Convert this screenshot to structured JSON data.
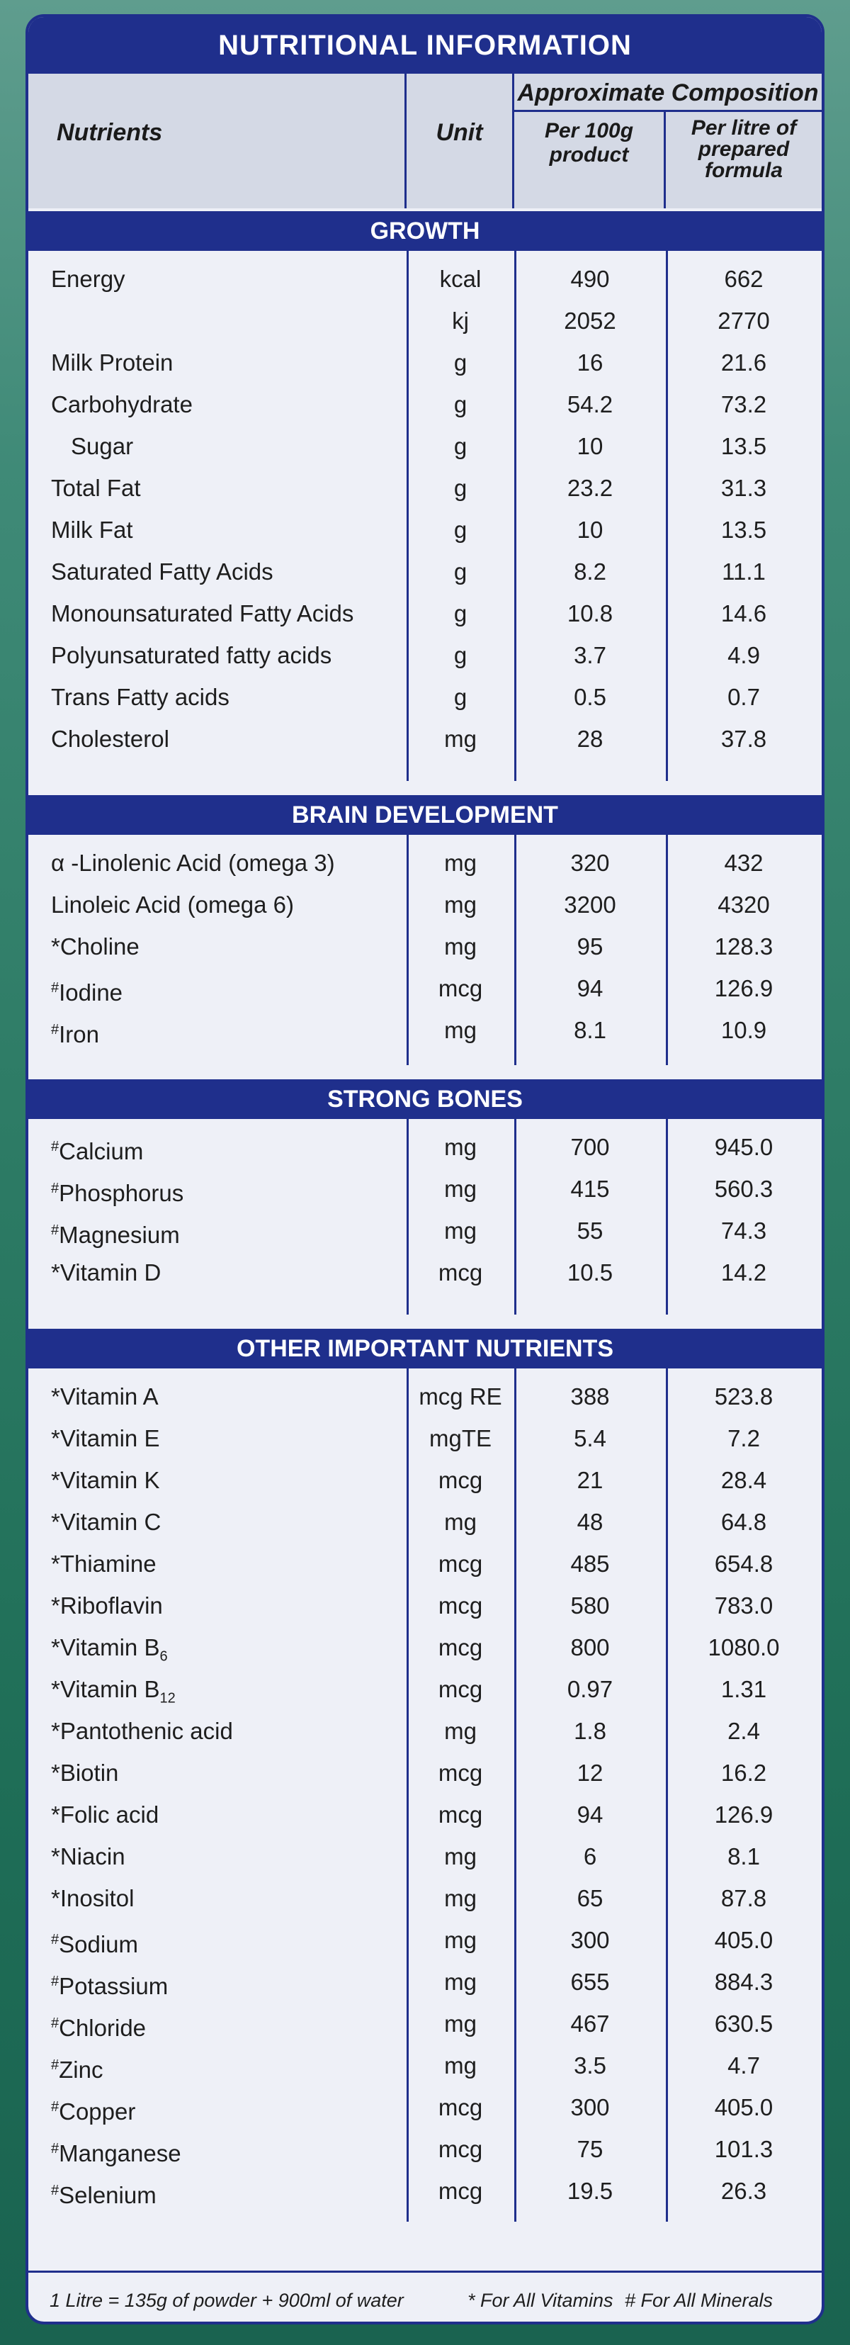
{
  "title": "NUTRITIONAL INFORMATION",
  "header": {
    "nutrients": "Nutrients",
    "unit": "Unit",
    "approx": "Approximate Composition",
    "per100": [
      "Per 100g",
      "product"
    ],
    "perlitre": [
      "Per litre of",
      "prepared",
      "formula"
    ]
  },
  "sections": [
    {
      "title": "GROWTH",
      "rows": [
        {
          "name": "Energy",
          "unit": "kcal",
          "v1": "490",
          "v2": "662"
        },
        {
          "name": "",
          "unit": "kj",
          "v1": "2052",
          "v2": "2770"
        },
        {
          "name": "Milk Protein",
          "unit": "g",
          "v1": "16",
          "v2": "21.6"
        },
        {
          "name": "Carbohydrate",
          "unit": "g",
          "v1": "54.2",
          "v2": "73.2"
        },
        {
          "name": "Sugar",
          "indent": true,
          "unit": "g",
          "v1": "10",
          "v2": "13.5"
        },
        {
          "name": "Total Fat",
          "unit": "g",
          "v1": "23.2",
          "v2": "31.3"
        },
        {
          "name": "Milk Fat",
          "unit": "g",
          "v1": "10",
          "v2": "13.5"
        },
        {
          "name": "Saturated Fatty Acids",
          "unit": "g",
          "v1": "8.2",
          "v2": "11.1"
        },
        {
          "name": "Monounsaturated Fatty Acids",
          "unit": "g",
          "v1": "10.8",
          "v2": "14.6"
        },
        {
          "name": "Polyunsaturated fatty acids",
          "unit": "g",
          "v1": "3.7",
          "v2": "4.9"
        },
        {
          "name": "Trans Fatty acids",
          "unit": "g",
          "v1": "0.5",
          "v2": "0.7"
        },
        {
          "name": "Cholesterol",
          "unit": "mg",
          "v1": "28",
          "v2": "37.8"
        }
      ]
    },
    {
      "title": "BRAIN DEVELOPMENT",
      "rows": [
        {
          "name": "α -Linolenic Acid (omega 3)",
          "unit": "mg",
          "v1": "320",
          "v2": "432"
        },
        {
          "name": "Linoleic Acid (omega 6)",
          "unit": "mg",
          "v1": "3200",
          "v2": "4320"
        },
        {
          "mark": "*",
          "name": "Choline",
          "unit": "mg",
          "v1": "95",
          "v2": "128.3"
        },
        {
          "mark": "#",
          "name": "Iodine",
          "unit": "mcg",
          "v1": "94",
          "v2": "126.9"
        },
        {
          "mark": "#",
          "name": "Iron",
          "unit": "mg",
          "v1": "8.1",
          "v2": "10.9"
        }
      ]
    },
    {
      "title": "STRONG BONES",
      "rows": [
        {
          "mark": "#",
          "name": "Calcium",
          "unit": "mg",
          "v1": "700",
          "v2": "945.0"
        },
        {
          "mark": "#",
          "name": "Phosphorus",
          "unit": "mg",
          "v1": "415",
          "v2": "560.3"
        },
        {
          "mark": "#",
          "name": "Magnesium",
          "unit": "mg",
          "v1": "55",
          "v2": "74.3"
        },
        {
          "mark": "*",
          "name": "Vitamin D",
          "unit": "mcg",
          "v1": "10.5",
          "v2": "14.2"
        }
      ]
    },
    {
      "title": "OTHER IMPORTANT NUTRIENTS",
      "rows": [
        {
          "mark": "*",
          "name": "Vitamin A",
          "unit": "mcg RE",
          "v1": "388",
          "v2": "523.8"
        },
        {
          "mark": "*",
          "name": "Vitamin E",
          "unit": "mgTE",
          "v1": "5.4",
          "v2": "7.2"
        },
        {
          "mark": "*",
          "name": "Vitamin K",
          "unit": "mcg",
          "v1": "21",
          "v2": "28.4"
        },
        {
          "mark": "*",
          "name": "Vitamin C",
          "unit": "mg",
          "v1": "48",
          "v2": "64.8"
        },
        {
          "mark": "*",
          "name": "Thiamine",
          "unit": "mcg",
          "v1": "485",
          "v2": "654.8"
        },
        {
          "mark": "*",
          "name": "Riboflavin",
          "unit": "mcg",
          "v1": "580",
          "v2": "783.0"
        },
        {
          "mark": "*",
          "name": "Vitamin B",
          "sub": "6",
          "unit": "mcg",
          "v1": "800",
          "v2": "1080.0"
        },
        {
          "mark": "*",
          "name": "Vitamin B",
          "sub": "12",
          "unit": "mcg",
          "v1": "0.97",
          "v2": "1.31"
        },
        {
          "mark": "*",
          "name": "Pantothenic  acid",
          "unit": "mg",
          "v1": "1.8",
          "v2": "2.4"
        },
        {
          "mark": "*",
          "name": "Biotin",
          "unit": "mcg",
          "v1": "12",
          "v2": "16.2"
        },
        {
          "mark": "*",
          "name": "Folic acid",
          "unit": "mcg",
          "v1": "94",
          "v2": "126.9"
        },
        {
          "mark": "*",
          "name": "Niacin",
          "unit": "mg",
          "v1": "6",
          "v2": "8.1"
        },
        {
          "mark": "*",
          "name": "Inositol",
          "unit": "mg",
          "v1": "65",
          "v2": "87.8"
        },
        {
          "mark": "#",
          "name": "Sodium",
          "unit": "mg",
          "v1": "300",
          "v2": "405.0"
        },
        {
          "mark": "#",
          "name": "Potassium",
          "unit": "mg",
          "v1": "655",
          "v2": "884.3"
        },
        {
          "mark": "#",
          "name": "Chloride",
          "unit": "mg",
          "v1": "467",
          "v2": "630.5"
        },
        {
          "mark": "#",
          "name": "Zinc",
          "unit": "mg",
          "v1": "3.5",
          "v2": "4.7"
        },
        {
          "mark": "#",
          "name": "Copper",
          "unit": "mcg",
          "v1": "300",
          "v2": "405.0"
        },
        {
          "mark": "#",
          "name": "Manganese",
          "unit": "mcg",
          "v1": "75",
          "v2": "101.3"
        },
        {
          "mark": "#",
          "name": "Selenium",
          "unit": "mcg",
          "v1": "19.5",
          "v2": "26.3"
        }
      ]
    }
  ],
  "footer": {
    "left": "1 Litre = 135g of powder + 900ml of water",
    "mid": "* For All Vitamins",
    "right": "# For All Minerals"
  }
}
